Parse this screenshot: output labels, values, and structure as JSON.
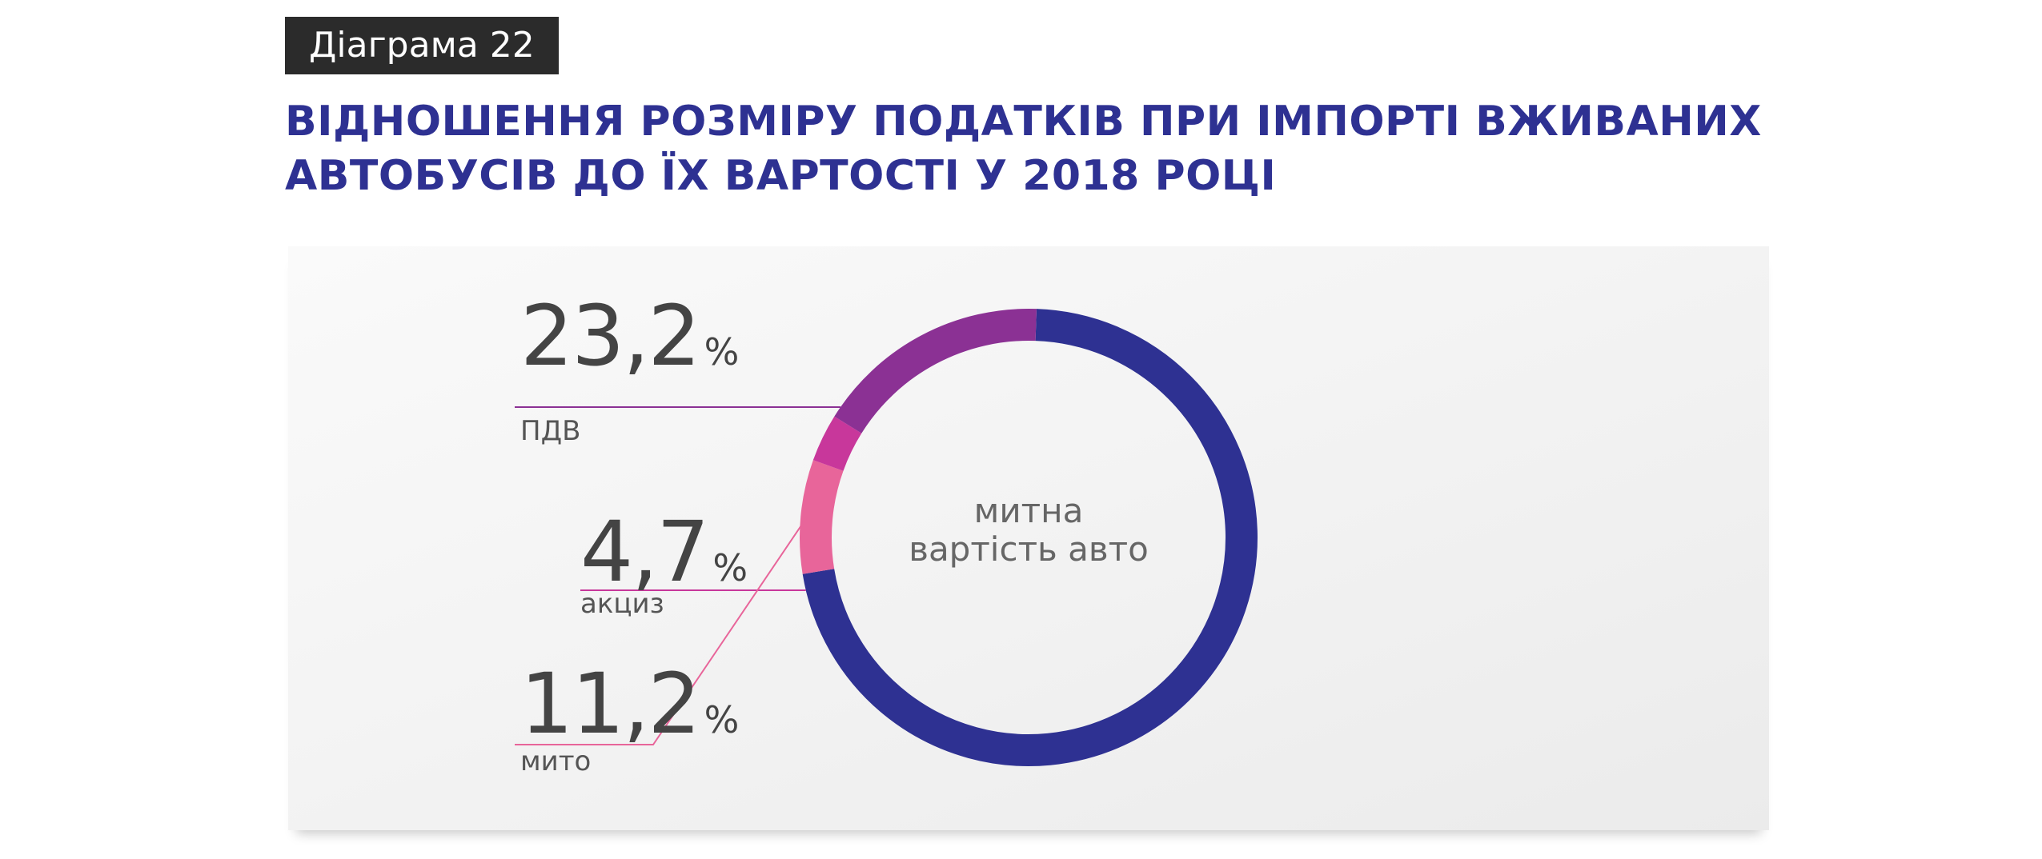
{
  "badge": "Діаграма 22",
  "title": {
    "line1": "ВІДНОШЕННЯ РОЗМІРУ ПОДАТКІВ ПРИ ІМПОРТІ ВЖИВАНИХ",
    "line2": "АВТОБУСІВ ДО ЇХ ВАРТОСТІ У 2018 РОЦІ"
  },
  "chart_data": {
    "type": "pie",
    "title": "ВІДНОШЕННЯ РОЗМІРУ ПОДАТКІВ ПРИ ІМПОРТІ ВЖИВАНИХ АВТОБУСІВ ДО ЇХ ВАРТОСТІ У 2018 РОЦІ",
    "center_label": {
      "line1": "митна",
      "line2": "вартість авто"
    },
    "slices": [
      {
        "key": "customs_value",
        "value": 100,
        "color": "#2e3192"
      },
      {
        "key": "mito",
        "value": 11.2,
        "value_label": "11,2",
        "unit": "%",
        "label": "мито",
        "color": "#e8659a"
      },
      {
        "key": "akcyz",
        "value": 4.7,
        "value_label": "4,7",
        "unit": "%",
        "label": "акциз",
        "color": "#c8379b"
      },
      {
        "key": "pdv",
        "value": 23.2,
        "value_label": "23,2",
        "unit": "%",
        "label": "ПДВ",
        "color": "#8b3194"
      }
    ],
    "legend": "left"
  }
}
